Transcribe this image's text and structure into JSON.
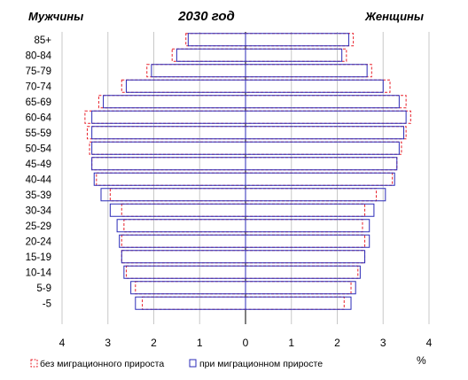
{
  "chart_data": {
    "type": "bar",
    "orientation": "horizontal",
    "title": "2030 год",
    "left_label": "Мужчины",
    "right_label": "Женщины",
    "unit": "%",
    "categories": [
      "85+",
      "80-84",
      "75-79",
      "70-74",
      "65-69",
      "60-64",
      "55-59",
      "50-54",
      "45-49",
      "40-44",
      "35-39",
      "30-34",
      "25-29",
      "20-24",
      "15-19",
      "10-14",
      "5-9",
      "-5"
    ],
    "series": [
      {
        "name": "без миграционного прироста",
        "color": "#e8212b",
        "style": "dashed",
        "men": [
          1.3,
          1.6,
          2.15,
          2.7,
          3.2,
          3.5,
          3.45,
          3.4,
          3.35,
          3.25,
          2.95,
          2.7,
          2.65,
          2.7,
          2.7,
          2.6,
          2.4,
          2.25
        ],
        "women": [
          2.35,
          2.2,
          2.75,
          3.15,
          3.5,
          3.6,
          3.5,
          3.4,
          3.3,
          3.2,
          2.85,
          2.6,
          2.55,
          2.6,
          2.6,
          2.45,
          2.3,
          2.15
        ]
      },
      {
        "name": "при миграционном приросте",
        "color": "#2b2bb8",
        "style": "solid",
        "men": [
          1.25,
          1.5,
          2.05,
          2.6,
          3.1,
          3.35,
          3.35,
          3.35,
          3.35,
          3.3,
          3.15,
          2.95,
          2.8,
          2.75,
          2.7,
          2.65,
          2.5,
          2.4
        ],
        "women": [
          2.25,
          2.1,
          2.65,
          3.0,
          3.35,
          3.5,
          3.45,
          3.35,
          3.3,
          3.25,
          3.05,
          2.8,
          2.7,
          2.7,
          2.6,
          2.5,
          2.4,
          2.3
        ]
      }
    ],
    "x_ticks": [
      "4",
      "3",
      "2",
      "1",
      "0",
      "1",
      "2",
      "3",
      "4"
    ],
    "xlim": [
      -4,
      4
    ],
    "grid": true,
    "legend_position": "bottom"
  }
}
